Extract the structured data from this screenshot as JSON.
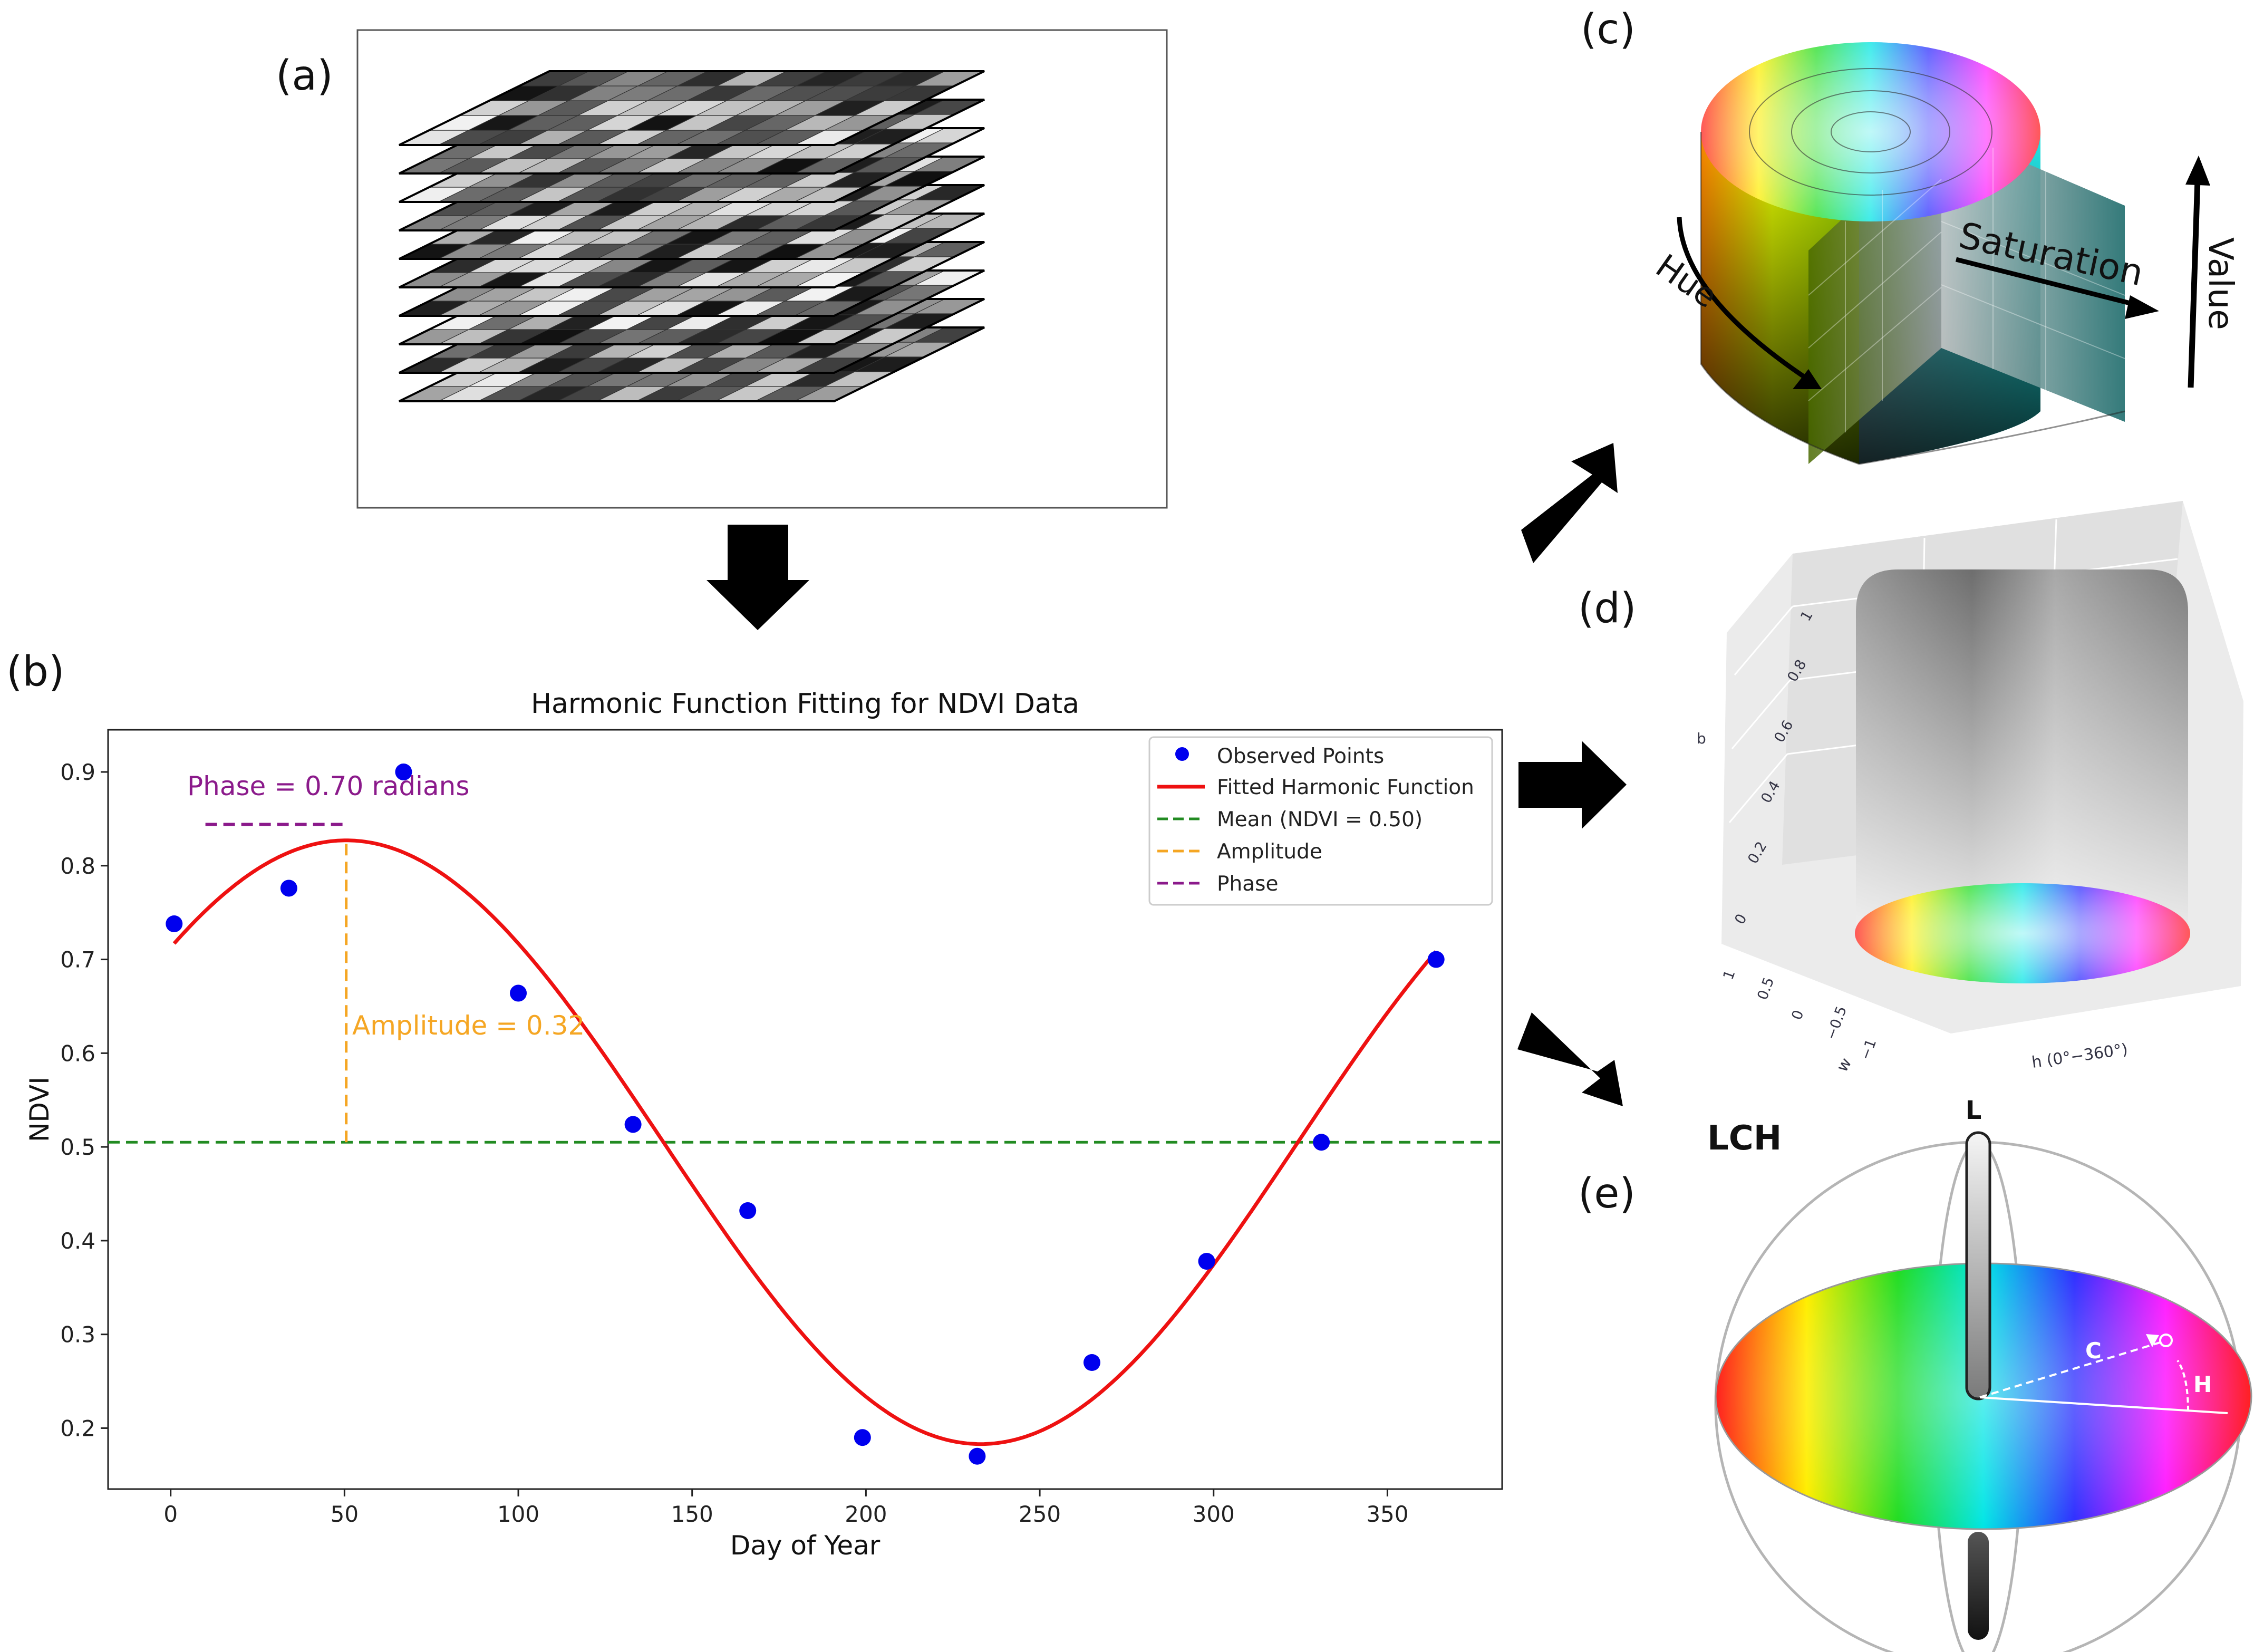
{
  "panels": {
    "a": "(a)",
    "b": "(b)",
    "c": "(c)",
    "d": "(d)",
    "e": "(e)"
  },
  "chart_data": {
    "type": "scatter",
    "title": "Harmonic Function Fitting for NDVI Data",
    "xlabel": "Day of Year",
    "ylabel": "NDVI",
    "xlim": [
      -18,
      383
    ],
    "ylim": [
      0.135,
      0.945
    ],
    "xticks": [
      0,
      50,
      100,
      150,
      200,
      250,
      300,
      350
    ],
    "yticks": [
      0.2,
      0.3,
      0.4,
      0.5,
      0.6,
      0.7,
      0.8,
      0.9
    ],
    "xtick_labels": [
      "0",
      "50",
      "100",
      "150",
      "200",
      "250",
      "300",
      "350"
    ],
    "ytick_labels": [
      "0.2",
      "0.3",
      "0.4",
      "0.5",
      "0.6",
      "0.7",
      "0.8",
      "0.9"
    ],
    "observed": {
      "name": "Observed Points",
      "color": "#0000ee",
      "x": [
        1,
        34,
        67,
        100,
        133,
        166,
        199,
        232,
        265,
        298,
        331,
        364
      ],
      "y": [
        0.738,
        0.776,
        0.9,
        0.664,
        0.524,
        0.432,
        0.19,
        0.17,
        0.27,
        0.378,
        0.505,
        0.7
      ]
    },
    "fit": {
      "name": "Fitted Harmonic Function",
      "color": "#ee1111",
      "mean": 0.505,
      "amplitude": 0.322,
      "peak_day": 50.5,
      "period": 365,
      "x_range": [
        1,
        364
      ]
    },
    "mean_line": {
      "name": "Mean (NDVI = 0.50)",
      "value": 0.505,
      "color": "#228b22"
    },
    "amplitude_line": {
      "name": "Amplitude",
      "x": 50.5,
      "y_from": 0.505,
      "y_to": 0.827,
      "color": "#f5a623"
    },
    "phase_line": {
      "name": "Phase",
      "x_from": 10,
      "x_to": 50,
      "y": 0.844,
      "color": "#8b1a8b"
    },
    "annotations": {
      "phase_text": "Phase = 0.70 radians",
      "amplitude_text": "Amplitude = 0.32"
    },
    "legend_position": "top-right"
  },
  "hsv_cylinder": {
    "hue_label": "Hue",
    "saturation_label": "Saturation",
    "value_label": "Value"
  },
  "hcl_cylinder": {
    "axis_b_label": "b",
    "axis_w_label": "w",
    "axis_h_label": "h (0°−360°)",
    "b_ticks": [
      "0",
      "0.2",
      "0.4",
      "0.6",
      "0.8",
      "1"
    ],
    "w_ticks": [
      "1",
      "0.5",
      "0",
      "−0.5",
      "−1"
    ]
  },
  "lch_sphere": {
    "title": "LCH",
    "l_label": "L",
    "c_label": "C",
    "h_label": "H"
  },
  "colors": {
    "arrow": "#000000",
    "frame": "#333333"
  }
}
